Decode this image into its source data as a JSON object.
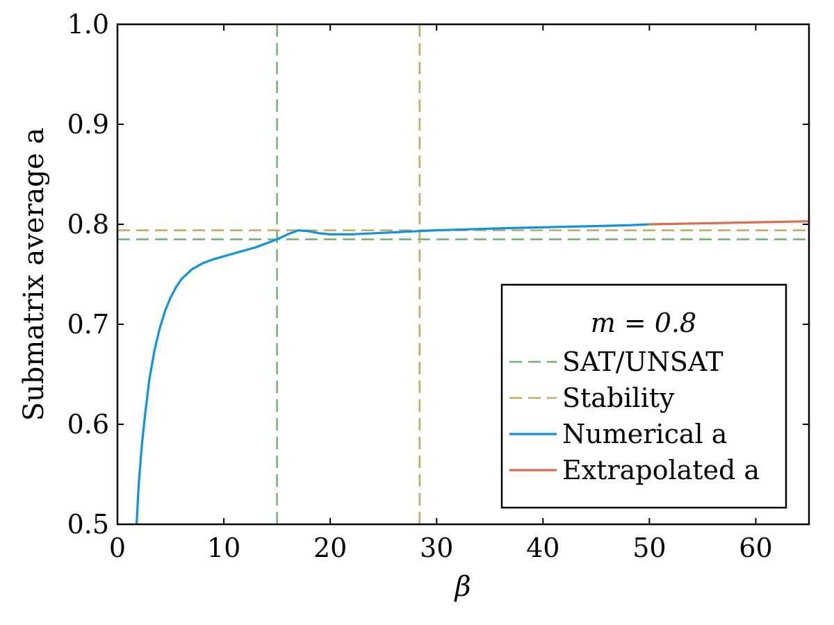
{
  "chart_data": {
    "type": "line",
    "title": "",
    "xlabel": "β",
    "ylabel": "Submatrix average a",
    "xlim": [
      0,
      65
    ],
    "ylim": [
      0.5,
      1.0
    ],
    "xticks": [
      0,
      10,
      20,
      30,
      40,
      50,
      60
    ],
    "yticks": [
      0.5,
      0.6,
      0.7,
      0.8,
      0.9,
      1.0
    ],
    "xtick_labels": [
      "0",
      "10",
      "20",
      "30",
      "40",
      "50",
      "60"
    ],
    "ytick_labels": [
      "0.5",
      "0.6",
      "0.7",
      "0.8",
      "0.9",
      "1.0"
    ],
    "grid": false,
    "legend": {
      "placement": "bottom-right",
      "title": "m = 0.8"
    },
    "reference_lines": [
      {
        "name": "SAT/UNSAT",
        "color": "#6db56e",
        "style": "dashed",
        "x": 15.0,
        "y": 0.785
      },
      {
        "name": "Stability",
        "color": "#c3a95a",
        "style": "dashed",
        "x": 28.4,
        "y": 0.794
      }
    ],
    "series": [
      {
        "name": "Numerical a",
        "color": "#0b93e8",
        "style": "solid",
        "x": [
          1.8,
          2.0,
          2.3,
          2.6,
          3.0,
          3.5,
          4.0,
          4.5,
          5.0,
          5.5,
          6.0,
          7.0,
          8.0,
          9.0,
          10.0,
          11.0,
          12.0,
          13.0,
          14.0,
          15.0,
          16.0,
          16.5,
          17.0,
          18.0,
          19.0,
          20.0,
          21.0,
          22.0,
          24.0,
          26.0,
          28.0,
          30.0,
          33.0,
          36.0,
          40.0,
          44.0,
          48.0,
          50.0
        ],
        "y": [
          0.5,
          0.54,
          0.58,
          0.61,
          0.645,
          0.675,
          0.697,
          0.714,
          0.727,
          0.737,
          0.745,
          0.755,
          0.761,
          0.765,
          0.768,
          0.771,
          0.774,
          0.777,
          0.781,
          0.785,
          0.79,
          0.792,
          0.794,
          0.793,
          0.791,
          0.79,
          0.79,
          0.79,
          0.791,
          0.792,
          0.793,
          0.794,
          0.795,
          0.796,
          0.797,
          0.798,
          0.799,
          0.8
        ]
      },
      {
        "name": "Extrapolated a",
        "color": "#e26b47",
        "style": "solid",
        "x": [
          50.0,
          55.0,
          60.0,
          65.0
        ],
        "y": [
          0.8,
          0.801,
          0.802,
          0.803
        ]
      }
    ]
  }
}
